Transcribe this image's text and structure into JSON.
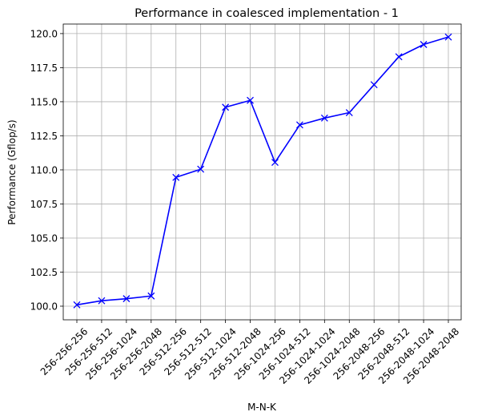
{
  "chart_data": {
    "type": "line",
    "title": "Performance in coalesced implementation - 1",
    "xlabel": "M-N-K",
    "ylabel": "Performance (Gflop/s)",
    "categories": [
      "256-256-256",
      "256-256-512",
      "256-256-1024",
      "256-256-2048",
      "256-512-256",
      "256-512-512",
      "256-512-1024",
      "256-512-2048",
      "256-1024-256",
      "256-1024-512",
      "256-1024-1024",
      "256-1024-2048",
      "256-2048-256",
      "256-2048-512",
      "256-2048-1024",
      "256-2048-2048"
    ],
    "series": [
      {
        "values": [
          100.1,
          100.4,
          100.55,
          100.75,
          109.45,
          110.05,
          114.6,
          115.1,
          110.55,
          113.3,
          113.8,
          114.2,
          116.25,
          118.3,
          119.2,
          119.75
        ],
        "color": "#0000ff",
        "marker": "x"
      }
    ],
    "ylim": [
      99.0,
      120.7
    ],
    "yticks": [
      "100.0",
      "102.5",
      "105.0",
      "107.5",
      "110.0",
      "112.5",
      "115.0",
      "117.5",
      "120.0"
    ],
    "ytick_values": [
      100.0,
      102.5,
      105.0,
      107.5,
      110.0,
      112.5,
      115.0,
      117.5,
      120.0
    ],
    "grid": true,
    "grid_color": "#b0b0b0"
  }
}
